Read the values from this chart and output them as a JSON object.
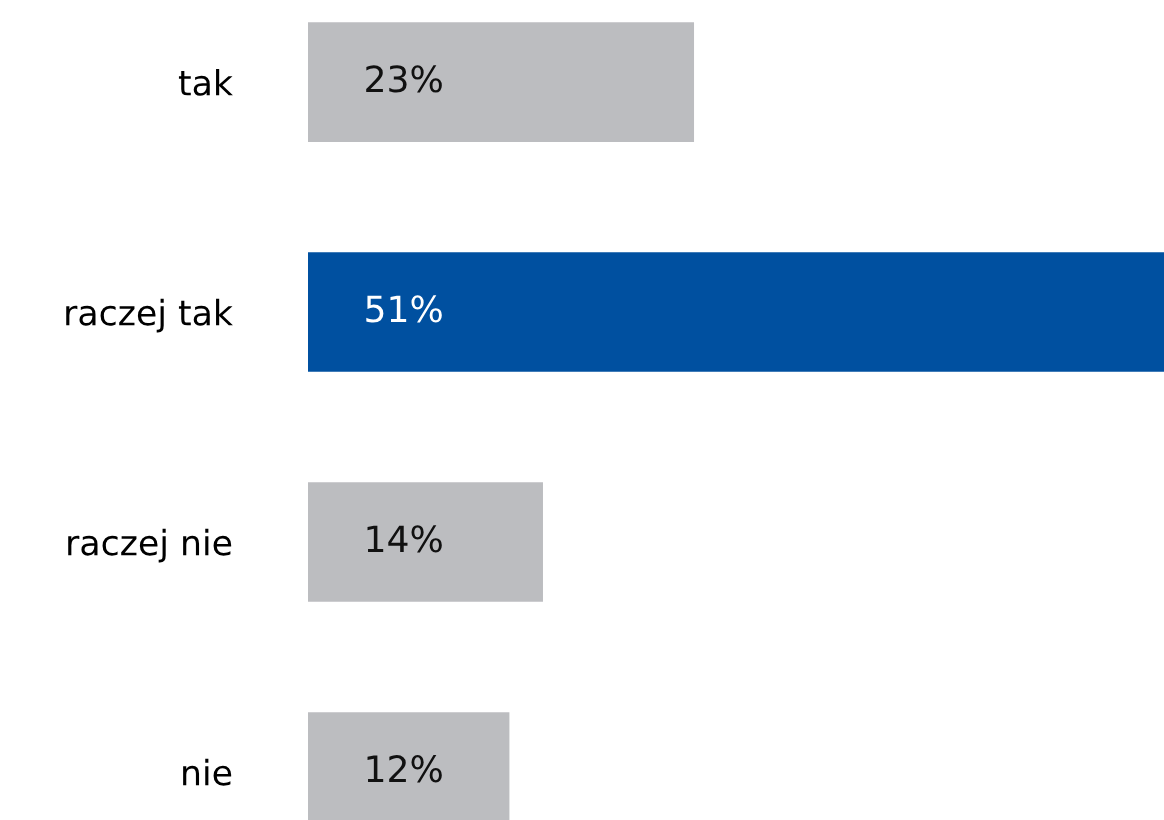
{
  "chart_data": {
    "type": "bar",
    "orientation": "horizontal",
    "categories": [
      "tak",
      "raczej tak",
      "raczej nie",
      "nie"
    ],
    "values": [
      23,
      51,
      14,
      12
    ],
    "colors": [
      "#bcbdc0",
      "#0050a0",
      "#bcbdc0",
      "#bcbdc0"
    ],
    "value_labels": [
      "23%",
      "51%",
      "14%",
      "12%"
    ],
    "grid": false,
    "legend": false,
    "tick_labels": "y"
  }
}
